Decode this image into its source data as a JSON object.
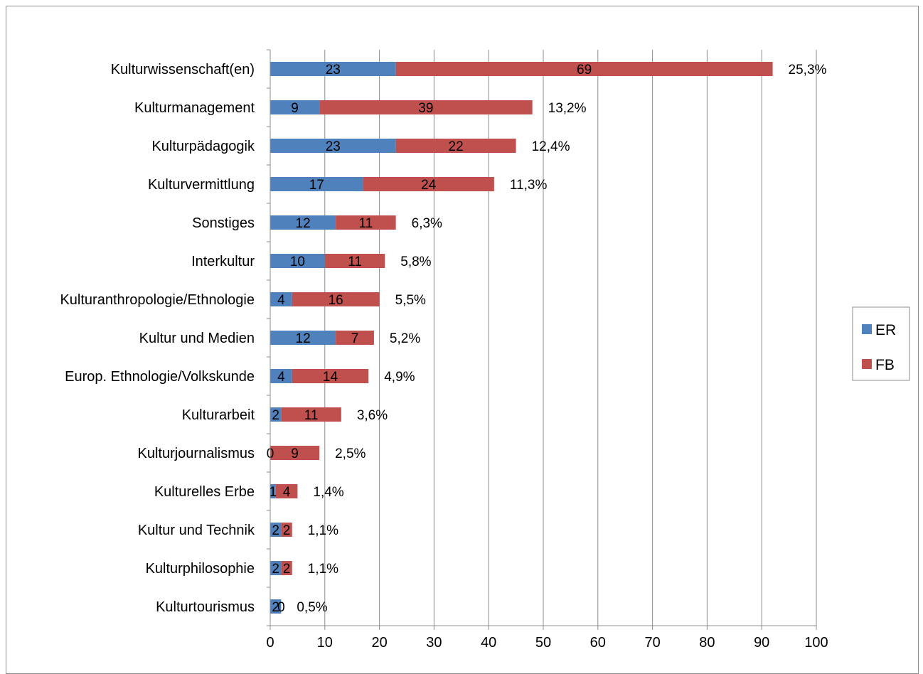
{
  "chart_data": {
    "type": "bar",
    "orientation": "horizontal",
    "stacked": true,
    "categories": [
      "Kulturwissenschaft(en)",
      "Kulturmanagement",
      "Kulturpädagogik",
      "Kulturvermittlung",
      "Sonstiges",
      "Interkultur",
      "Kulturanthropologie/Ethnologie",
      "Kultur und Medien",
      "Europ. Ethnologie/Volkskunde",
      "Kulturarbeit",
      "Kulturjournalismus",
      "Kulturelles Erbe",
      "Kultur und Technik",
      "Kulturphilosophie",
      "Kulturtourismus"
    ],
    "series": [
      {
        "name": "ER",
        "color": "#4f81bd",
        "values": [
          23,
          9,
          23,
          17,
          12,
          10,
          4,
          12,
          4,
          2,
          0,
          1,
          2,
          2,
          2
        ]
      },
      {
        "name": "FB",
        "color": "#c0504d",
        "values": [
          69,
          39,
          22,
          24,
          11,
          11,
          16,
          7,
          14,
          11,
          9,
          4,
          2,
          2,
          0
        ]
      }
    ],
    "percent_labels": [
      "25,3%",
      "13,2%",
      "12,4%",
      "11,3%",
      "6,3%",
      "5,8%",
      "5,5%",
      "5,2%",
      "4,9%",
      "3,6%",
      "2,5%",
      "1,4%",
      "1,1%",
      "1,1%",
      "0,5%"
    ],
    "xlim": [
      0,
      100
    ],
    "x_ticks": [
      0,
      10,
      20,
      30,
      40,
      50,
      60,
      70,
      80,
      90,
      100
    ],
    "grid": true,
    "legend_position": "right"
  }
}
